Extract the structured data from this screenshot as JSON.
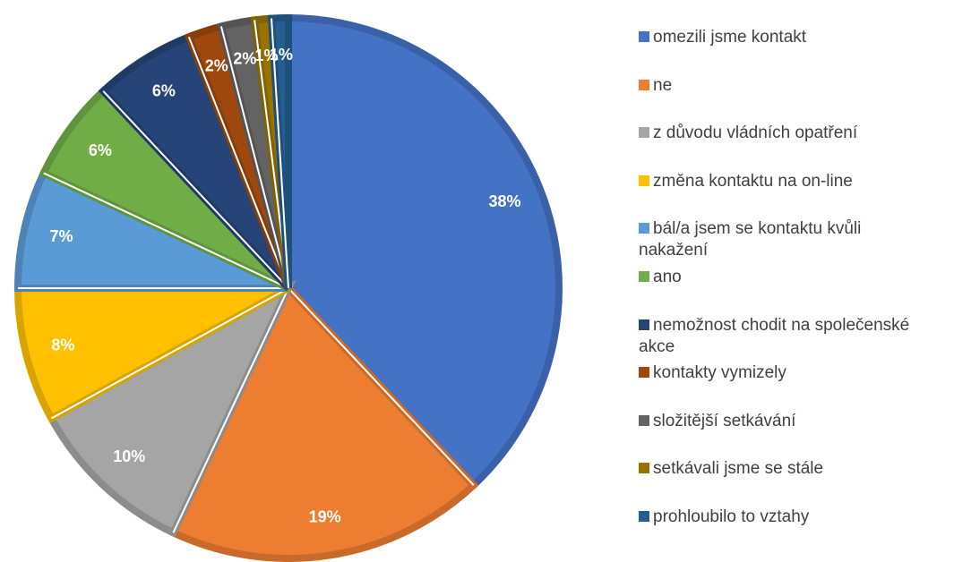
{
  "chart_data": {
    "type": "pie",
    "categories": [
      "omezili jsme kontakt",
      "ne",
      "z důvodu vládních opatření",
      "změna kontaktu na on-line",
      "bál/a jsem se kontaktu kvůli nakažení",
      "ano",
      "nemožnost chodit na společenské akce",
      "kontakty vymizely",
      "složitější setkávání",
      "setkávali jsme se stále",
      "prohloubilo to vztahy"
    ],
    "values": [
      38,
      19,
      10,
      8,
      7,
      6,
      6,
      2,
      2,
      1,
      1
    ],
    "value_labels": [
      "38%",
      "19%",
      "10%",
      "8%",
      "7%",
      "6%",
      "6%",
      "2%",
      "2%",
      "1%",
      "1%"
    ],
    "colors": [
      "#4472C4",
      "#ED7D31",
      "#A5A5A5",
      "#FFC000",
      "#5B9BD5",
      "#70AD47",
      "#264478",
      "#9E480E",
      "#636363",
      "#997300",
      "#255E91"
    ],
    "legend": "right"
  }
}
